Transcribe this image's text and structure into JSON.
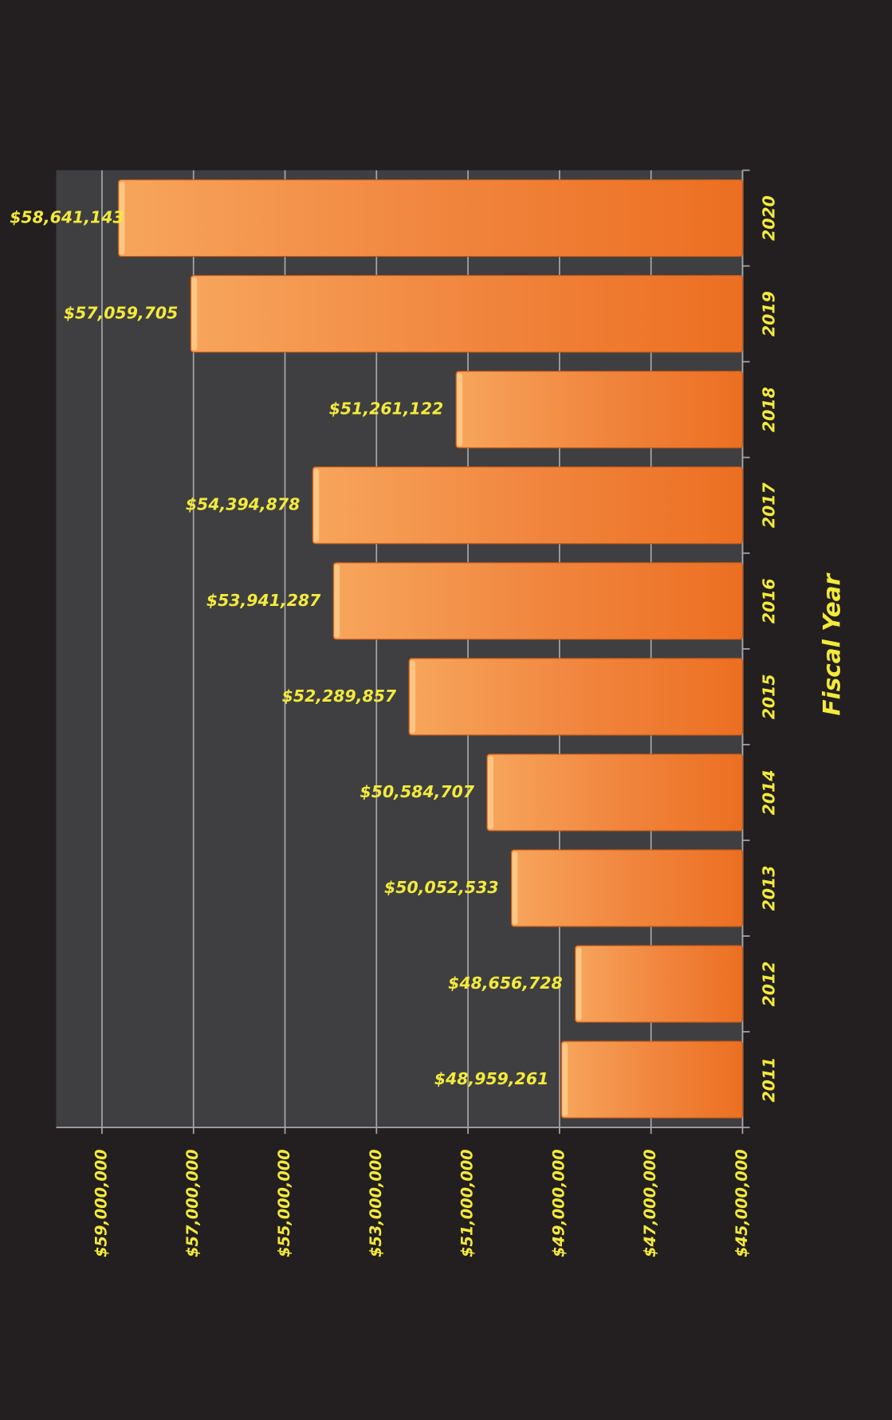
{
  "chart_data": {
    "type": "bar",
    "orientation": "horizontal",
    "x_label": "Fiscal Year",
    "categories": [
      "2011",
      "2012",
      "2013",
      "2014",
      "2015",
      "2016",
      "2017",
      "2018",
      "2019",
      "2020"
    ],
    "values": [
      48959261,
      48656728,
      50052533,
      50584707,
      52289857,
      53941287,
      54394878,
      51261122,
      57059705,
      58641143
    ],
    "value_labels": [
      "$48,959,261",
      "$48,656,728",
      "$50,052,533",
      "$50,584,707",
      "$52,289,857",
      "$53,941,287",
      "$54,394,878",
      "$51,261,122",
      "$57,059,705",
      "$58,641,143"
    ],
    "color": "#f07a30",
    "ylim": [
      45000000,
      60000000
    ],
    "yticks": [
      {
        "value": 45000000,
        "label": "$45,000,000"
      },
      {
        "value": 47000000,
        "label": "$47,000,000"
      },
      {
        "value": 49000000,
        "label": "$49,000,000"
      },
      {
        "value": 51000000,
        "label": "$51,000,000"
      },
      {
        "value": 53000000,
        "label": "$53,000,000"
      },
      {
        "value": 55000000,
        "label": "$55,000,000"
      },
      {
        "value": 57000000,
        "label": "$57,000,000"
      },
      {
        "value": 59000000,
        "label": "$59,000,000"
      }
    ],
    "grid": true
  }
}
